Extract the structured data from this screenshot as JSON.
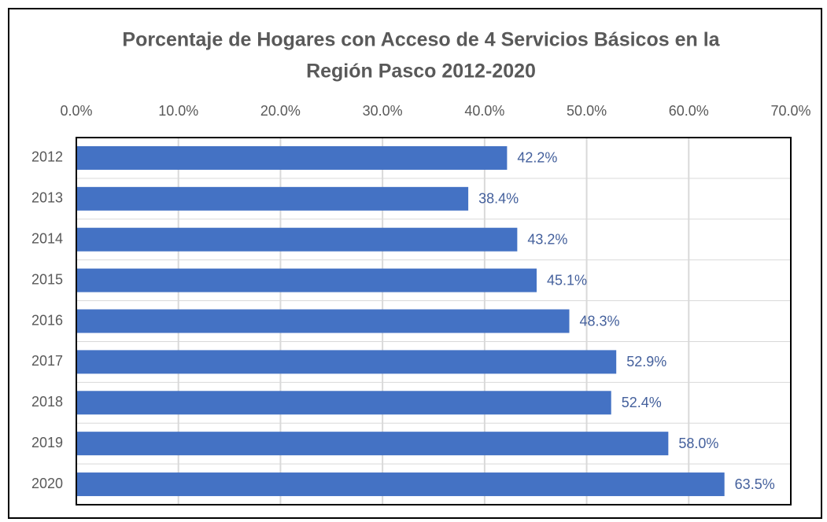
{
  "chart_data": {
    "type": "bar",
    "orientation": "horizontal",
    "title": [
      "Porcentaje de Hogares con Acceso de 4 Servicios Básicos en la",
      "Región Pasco 2012-2020"
    ],
    "categories": [
      "2012",
      "2013",
      "2014",
      "2015",
      "2016",
      "2017",
      "2018",
      "2019",
      "2020"
    ],
    "values": [
      42.2,
      38.4,
      43.2,
      45.1,
      48.3,
      52.9,
      52.4,
      58.0,
      63.5
    ],
    "value_labels": [
      "42.2%",
      "38.4%",
      "43.2%",
      "45.1%",
      "48.3%",
      "52.9%",
      "52.4%",
      "58.0%",
      "63.5%"
    ],
    "color": "#4472c4",
    "xlim": [
      0,
      70
    ],
    "xticks": [
      {
        "value": 0,
        "label": "0.0%"
      },
      {
        "value": 10,
        "label": "10.0%"
      },
      {
        "value": 20,
        "label": "20.0%"
      },
      {
        "value": 30,
        "label": "30.0%"
      },
      {
        "value": 40,
        "label": "40.0%"
      },
      {
        "value": 50,
        "label": "50.0%"
      },
      {
        "value": 60,
        "label": "60.0%"
      },
      {
        "value": 70,
        "label": "70.0%"
      }
    ],
    "grid": true
  }
}
